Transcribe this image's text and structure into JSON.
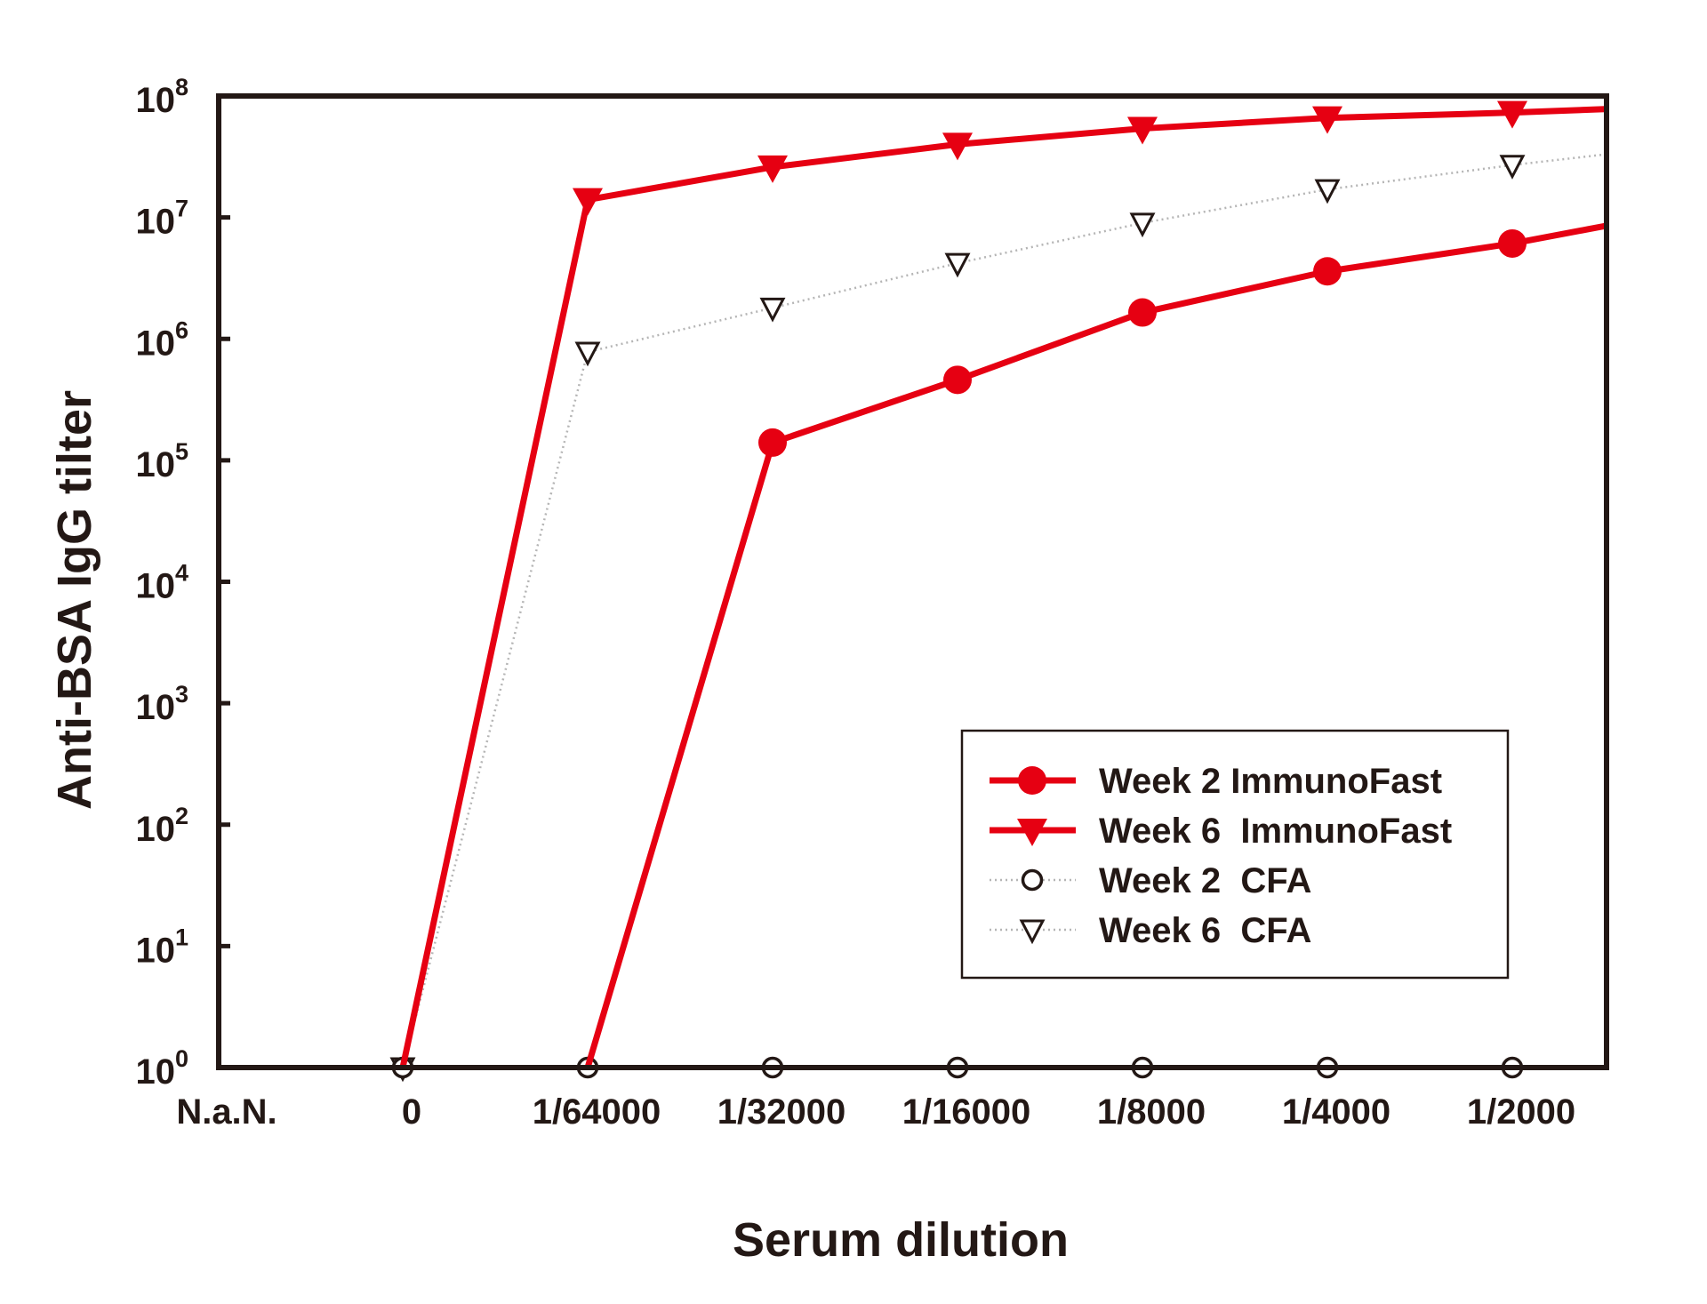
{
  "chart_data": {
    "type": "line",
    "xlabel": "Serum dilution",
    "ylabel": "Anti-BSA IgG tilter",
    "x_categories": [
      "N.a.N.",
      "0",
      "1/64000",
      "1/32000",
      "1/16000",
      "1/8000",
      "1/4000",
      "1/2000"
    ],
    "y_scale": "log",
    "ylim": [
      1,
      100000000
    ],
    "y_ticks": [
      {
        "base": "10",
        "exp": "0"
      },
      {
        "base": "10",
        "exp": "1"
      },
      {
        "base": "10",
        "exp": "2"
      },
      {
        "base": "10",
        "exp": "3"
      },
      {
        "base": "10",
        "exp": "4"
      },
      {
        "base": "10",
        "exp": "5"
      },
      {
        "base": "10",
        "exp": "6"
      },
      {
        "base": "10",
        "exp": "7"
      },
      {
        "base": "10",
        "exp": "8"
      }
    ],
    "legend_position": "bottom-right",
    "series": [
      {
        "name": "Week 2 ImmunoFast",
        "color": "#e60012",
        "line_style": "solid",
        "marker": "filled-circle",
        "points": [
          {
            "x": "1/64000",
            "y": 1
          },
          {
            "x": "1/32000",
            "y": 140000
          },
          {
            "x": "1/16000",
            "y": 460000
          },
          {
            "x": "1/8000",
            "y": 1650000
          },
          {
            "x": "1/4000",
            "y": 3600000
          },
          {
            "x": "1/2000",
            "y": 6100000
          }
        ],
        "tail_to_right_edge": 8500000
      },
      {
        "name": "Week 6  ImmunoFast",
        "color": "#e60012",
        "line_style": "solid",
        "marker": "filled-triangle-down",
        "points": [
          {
            "x": "0",
            "y": 1
          },
          {
            "x": "1/64000",
            "y": 14000000
          },
          {
            "x": "1/32000",
            "y": 26000000
          },
          {
            "x": "1/16000",
            "y": 40000000
          },
          {
            "x": "1/8000",
            "y": 54000000
          },
          {
            "x": "1/4000",
            "y": 66000000
          },
          {
            "x": "1/2000",
            "y": 73000000
          }
        ],
        "tail_to_right_edge": 78000000
      },
      {
        "name": "Week 2  CFA",
        "color": "#231815",
        "line_style": "dotted",
        "marker": "open-circle",
        "points": [
          {
            "x": "0",
            "y": 1
          },
          {
            "x": "1/64000",
            "y": 1
          },
          {
            "x": "1/32000",
            "y": 1
          },
          {
            "x": "1/16000",
            "y": 1
          },
          {
            "x": "1/8000",
            "y": 1
          },
          {
            "x": "1/4000",
            "y": 1
          },
          {
            "x": "1/2000",
            "y": 1
          }
        ],
        "tail_to_right_edge": 1
      },
      {
        "name": "Week 6  CFA",
        "color": "#231815",
        "line_style": "dotted",
        "marker": "open-triangle-down",
        "points": [
          {
            "x": "0",
            "y": 1
          },
          {
            "x": "1/64000",
            "y": 780000
          },
          {
            "x": "1/32000",
            "y": 1800000
          },
          {
            "x": "1/16000",
            "y": 4200000
          },
          {
            "x": "1/8000",
            "y": 9000000
          },
          {
            "x": "1/4000",
            "y": 17000000
          },
          {
            "x": "1/2000",
            "y": 27000000
          }
        ],
        "tail_to_right_edge": 33000000
      }
    ]
  }
}
